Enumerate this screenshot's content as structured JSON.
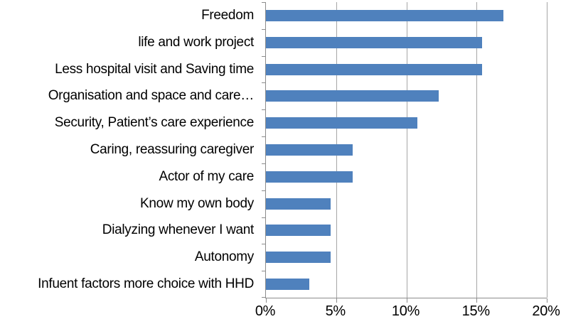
{
  "chart_data": {
    "type": "bar",
    "orientation": "horizontal",
    "title": "",
    "xlabel": "",
    "ylabel": "",
    "categories": [
      "Freedom",
      "life and work project",
      "Less hospital visit and Saving time",
      "Organisation and space and care…",
      "Security, Patient’s care experience",
      "Caring, reassuring caregiver",
      "Actor of my care",
      "Know my own body",
      "Dialyzing whenever I want",
      "Autonomy",
      "Infuent factors more choice with HHD"
    ],
    "values": [
      16.9,
      15.4,
      15.4,
      12.3,
      10.8,
      6.2,
      6.2,
      4.6,
      4.6,
      4.6,
      3.1
    ],
    "value_unit": "%",
    "xlim": [
      0,
      20
    ],
    "x_ticks": [
      "0%",
      "5%",
      "10%",
      "15%",
      "20%"
    ],
    "x_tick_values": [
      0,
      5,
      10,
      15,
      20
    ],
    "grid": true,
    "legend": false,
    "colors": {
      "bar": "#4f81bd",
      "axis": "#8c8c8c",
      "gridline": "#a6a6a6",
      "text": "#000000",
      "background": "#ffffff"
    }
  }
}
